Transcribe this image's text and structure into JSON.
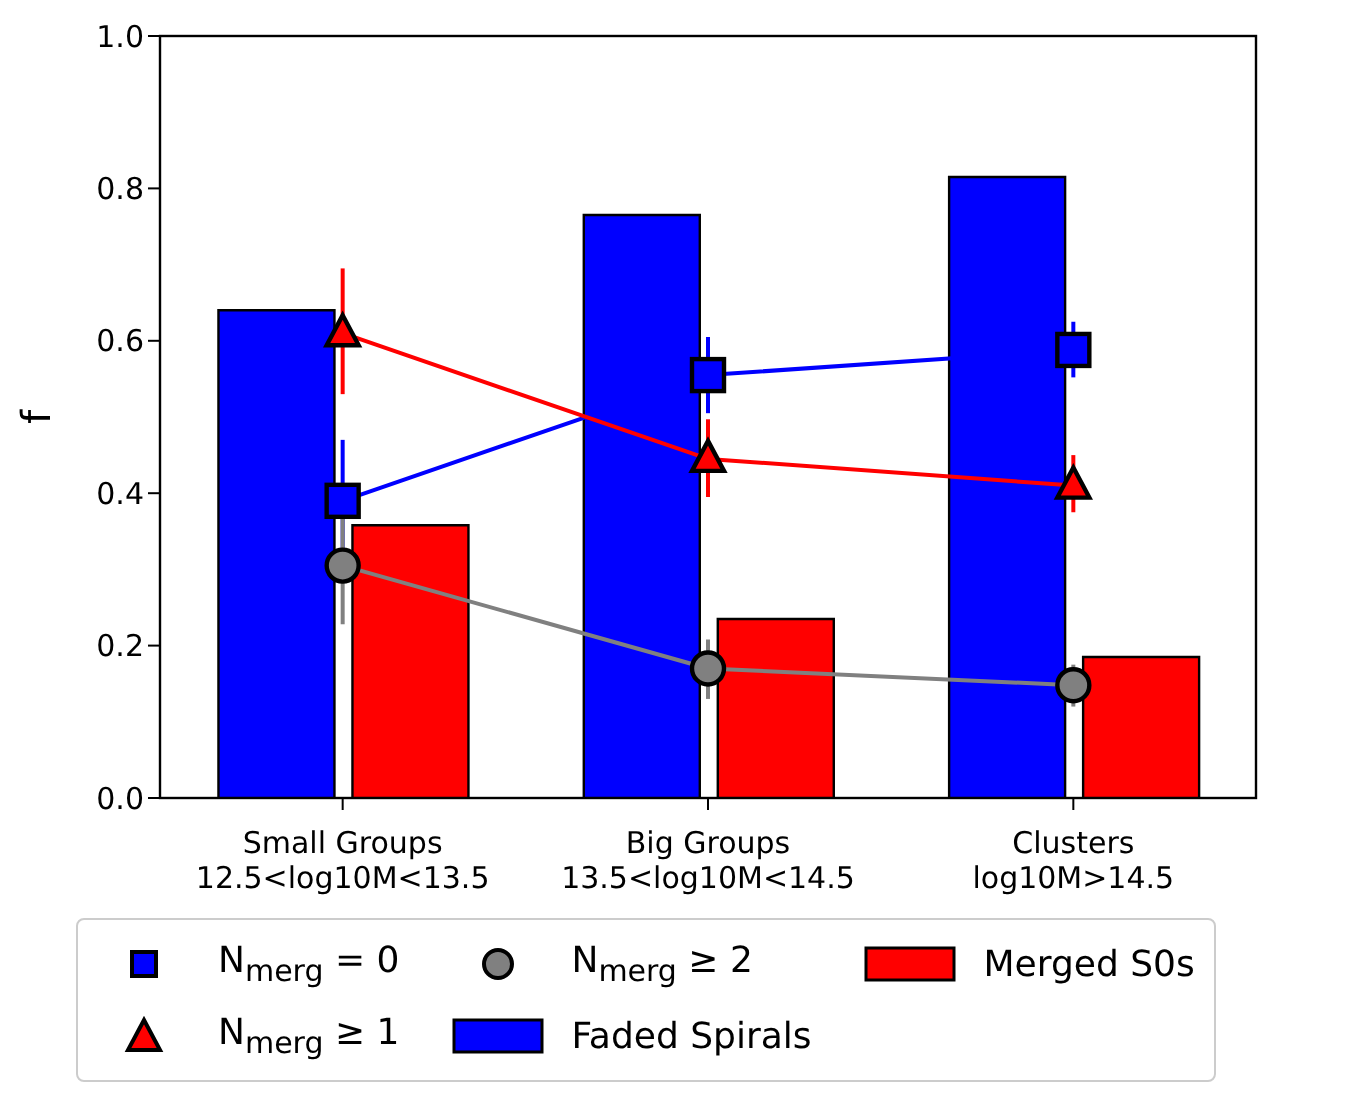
{
  "chart_data": {
    "type": "bar",
    "ylabel": "f",
    "categories": [
      "Small Groups\n12.5<log10M<13.5",
      "Big Groups\n13.5<log10M<14.5",
      "Clusters\nlog10M>14.5"
    ],
    "ylim": [
      0,
      1
    ],
    "yticks": [
      {
        "value": 0,
        "label": "0.0"
      },
      {
        "value": 0.2,
        "label": "0.2"
      },
      {
        "value": 0.4,
        "label": "0.4"
      },
      {
        "value": 0.6,
        "label": "0.6"
      },
      {
        "value": 0.8,
        "label": "0.8"
      },
      {
        "value": 1,
        "label": "1.0"
      }
    ],
    "grid": false,
    "legend": "bottom",
    "series": [
      {
        "name": "Faded Spirals",
        "color": "#0000ff",
        "values": [
          0.64,
          0.765,
          0.815
        ]
      },
      {
        "name": "Merged S0s",
        "color": "#ff0000",
        "values": [
          0.358,
          0.235,
          0.185
        ]
      },
      {
        "name": "N$_{merg}$ = 0",
        "type": "line",
        "color": "#0000ff",
        "marker": "square",
        "values": [
          0.39,
          0.555,
          0.588
        ],
        "errors": [
          [
            0.32,
            0.47
          ],
          [
            0.505,
            0.605
          ],
          [
            0.552,
            0.625
          ]
        ]
      },
      {
        "name": "N$_{merg}$ ≥ 1",
        "type": "line",
        "color": "#ff0000",
        "marker": "triangle",
        "values": [
          0.61,
          0.445,
          0.41
        ],
        "errors": [
          [
            0.53,
            0.695
          ],
          [
            0.395,
            0.497
          ],
          [
            0.375,
            0.45
          ]
        ]
      },
      {
        "name": "N$_{merg}$ ≥ 2",
        "type": "line",
        "color": "#808080",
        "marker": "circle",
        "values": [
          0.305,
          0.17,
          0.148
        ],
        "errors": [
          [
            0.228,
            0.38
          ],
          [
            0.13,
            0.208
          ],
          [
            0.12,
            0.175
          ]
        ]
      }
    ]
  }
}
